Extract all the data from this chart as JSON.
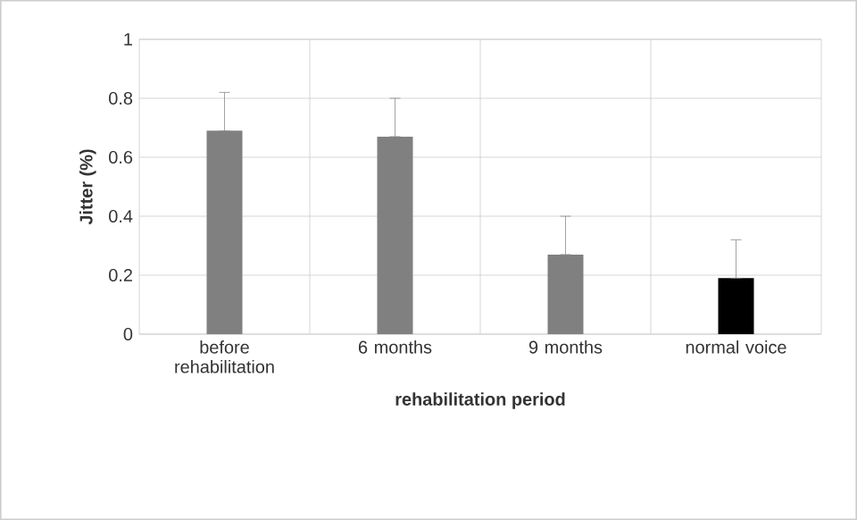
{
  "chart_data": {
    "type": "bar",
    "xlabel": "rehabilitation period",
    "ylabel": "Jitter  (%)",
    "categories": [
      "before rehabilitation",
      "6 months",
      "9 months",
      "normal voice"
    ],
    "values": [
      0.69,
      0.67,
      0.27,
      0.19
    ],
    "colors": [
      "#808080",
      "#808080",
      "#808080",
      "#000000"
    ],
    "errors": [
      [
        0.69,
        0.82
      ],
      [
        0.67,
        0.8
      ],
      [
        0.27,
        0.4
      ],
      [
        0.19,
        0.32
      ]
    ],
    "ylim": [
      0,
      1
    ],
    "yticks": [
      0,
      0.2,
      0.4,
      0.6,
      0.8,
      1
    ],
    "grid": true
  }
}
